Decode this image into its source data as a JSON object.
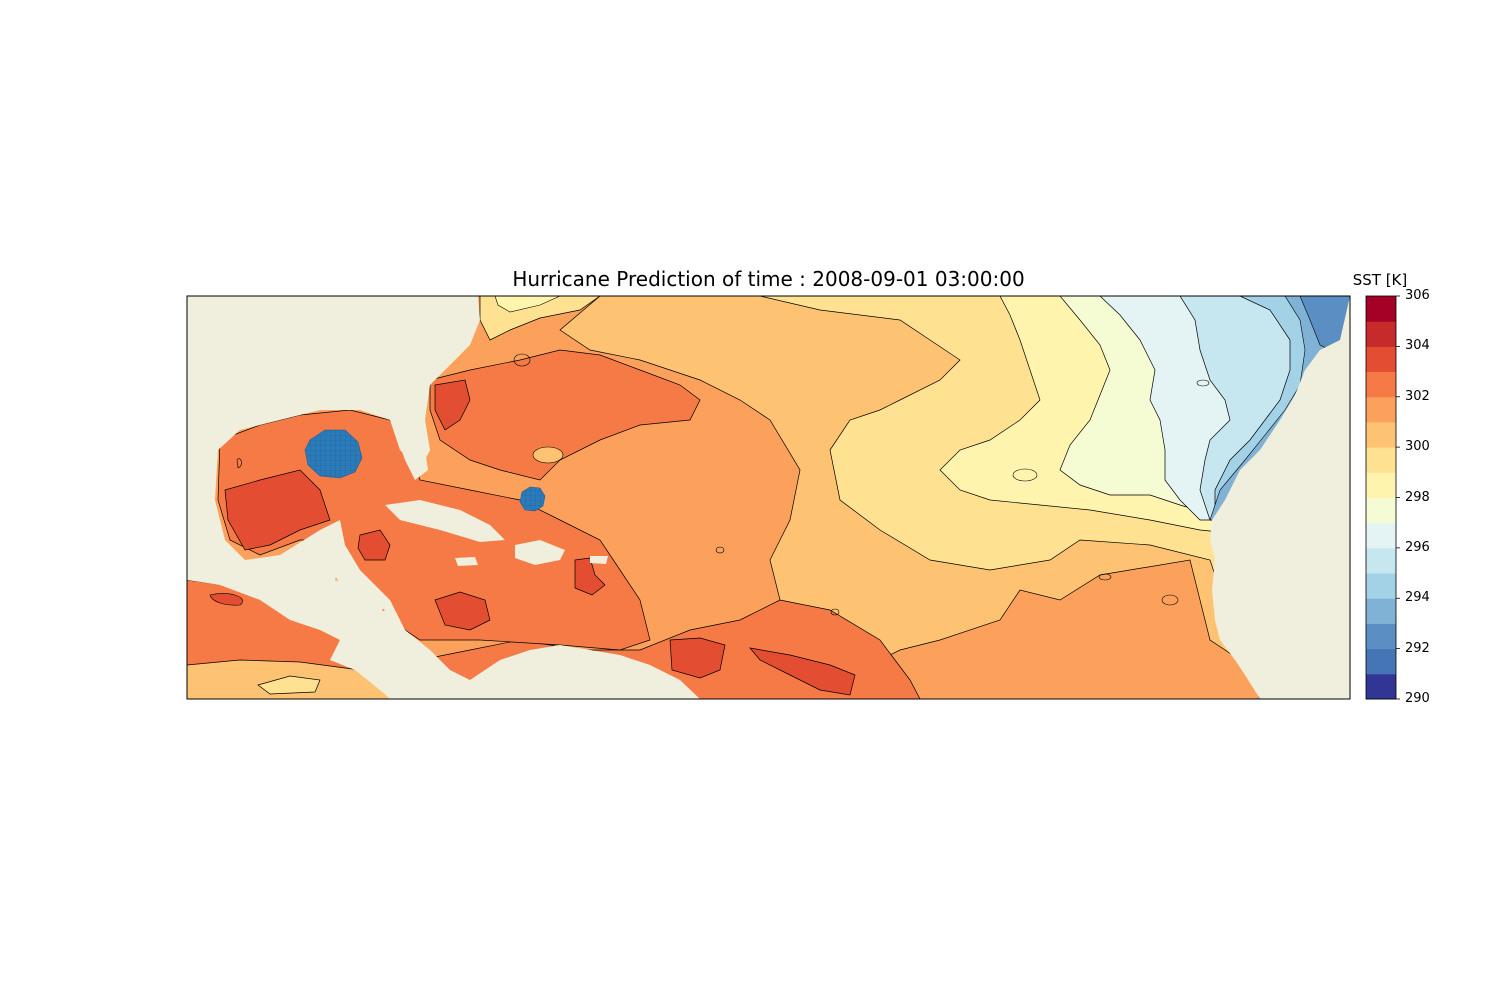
{
  "title": "Hurricane Prediction of time : 2008-09-01 03:00:00",
  "colorbar": {
    "label": "SST [K]",
    "min": 290,
    "max": 306,
    "ticks": [
      "290",
      "292",
      "294",
      "296",
      "298",
      "300",
      "302",
      "304",
      "306"
    ],
    "colors": [
      "#313695",
      "#4575b4",
      "#5b8fc4",
      "#7fb2d5",
      "#a3d1e5",
      "#c6e6f0",
      "#e4f4f4",
      "#f5fbd3",
      "#fff4ae",
      "#fee191",
      "#fdc372",
      "#fca15b",
      "#f57a45",
      "#e34e33",
      "#c62a2a",
      "#a50026"
    ]
  },
  "colors": {
    "land": "#f0eedc",
    "hurricane_marker": "#2b7bba"
  }
}
